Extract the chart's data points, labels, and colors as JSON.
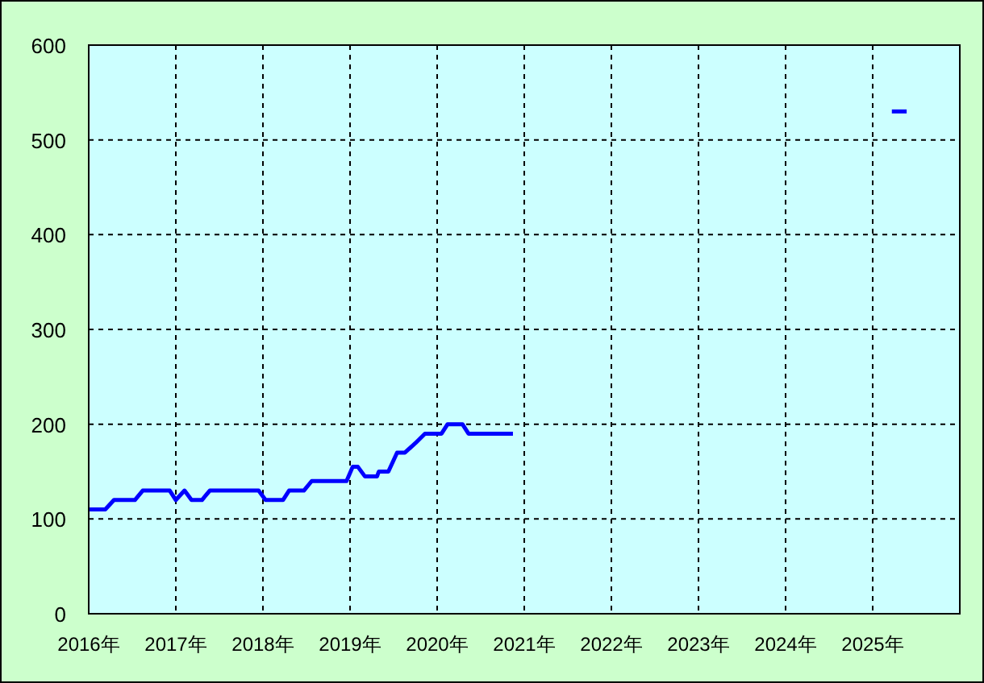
{
  "chart_data": {
    "type": "line",
    "series": [
      {
        "color": "#0000ff",
        "x": [
          2016.0,
          2016.19,
          2016.29,
          2016.53,
          2016.62,
          2016.93,
          2017.0,
          2017.1,
          2017.18,
          2017.3,
          2017.39,
          2017.95,
          2018.03,
          2018.23,
          2018.3,
          2018.47,
          2018.56,
          2018.96,
          2019.03,
          2019.09,
          2019.17,
          2019.31,
          2019.33,
          2019.44,
          2019.54,
          2019.63,
          2019.75,
          2019.86,
          2020.05,
          2020.12,
          2020.29,
          2020.36,
          2020.87
        ],
        "values": [
          110,
          110,
          120,
          120,
          130,
          130,
          120,
          130,
          120,
          120,
          130,
          130,
          120,
          120,
          130,
          130,
          140,
          140,
          155,
          155,
          145,
          145,
          150,
          150,
          170,
          170,
          180,
          190,
          190,
          200,
          200,
          190,
          190
        ]
      },
      {
        "color": "#0000ff",
        "x": [
          2025.22,
          2025.39
        ],
        "values": [
          530,
          530
        ]
      }
    ],
    "xlim": [
      2016,
      2026
    ],
    "ylim": [
      0,
      600
    ],
    "xticks": [
      {
        "value": 2016,
        "label": "2016年"
      },
      {
        "value": 2017,
        "label": "2017年"
      },
      {
        "value": 2018,
        "label": "2018年"
      },
      {
        "value": 2019,
        "label": "2019年"
      },
      {
        "value": 2020,
        "label": "2020年"
      },
      {
        "value": 2021,
        "label": "2021年"
      },
      {
        "value": 2022,
        "label": "2022年"
      },
      {
        "value": 2023,
        "label": "2023年"
      },
      {
        "value": 2024,
        "label": "2024年"
      },
      {
        "value": 2025,
        "label": "2025年"
      }
    ],
    "yticks": [
      0,
      100,
      200,
      300,
      400,
      500,
      600
    ],
    "grid": true,
    "marker": "none",
    "line_style": "solid"
  }
}
